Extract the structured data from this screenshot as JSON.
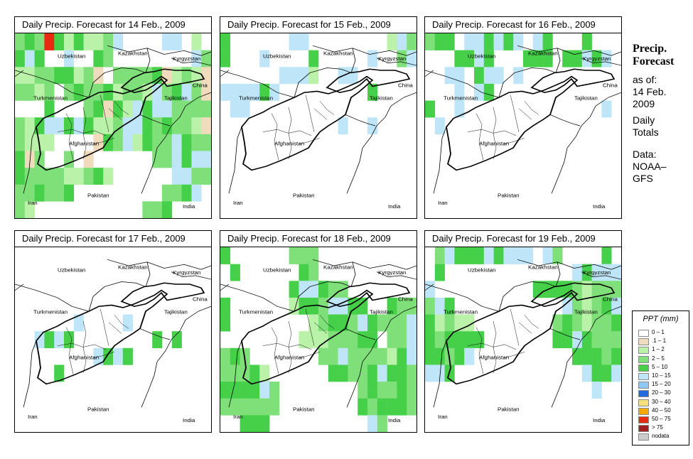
{
  "panels": [
    {
      "title": "Daily Precip. Forecast for  14 Feb., 2009",
      "precip": [
        [
          3,
          4,
          3,
          10,
          4,
          2,
          4,
          2,
          2,
          3,
          5,
          0,
          0,
          0,
          0,
          5,
          5,
          0,
          2,
          0,
          4,
          5,
          4,
          0,
          0,
          5,
          0,
          0,
          4,
          3,
          0,
          0,
          0,
          0,
          0,
          0,
          0,
          0,
          5,
          3,
          2,
          2,
          3,
          3,
          4,
          4,
          2,
          3,
          1,
          0,
          3,
          3,
          3,
          3,
          4,
          1,
          2,
          3,
          2,
          1,
          3,
          3,
          2,
          3,
          0,
          3,
          4,
          3,
          3,
          4,
          2,
          3,
          3,
          2,
          5,
          3,
          4,
          5,
          3,
          1,
          0,
          0,
          0,
          4,
          0,
          0,
          0,
          3,
          4,
          1,
          4,
          2,
          5,
          4,
          5,
          5,
          3,
          3,
          3,
          3,
          3,
          2,
          4,
          5,
          5,
          4,
          5,
          4,
          2,
          2,
          3,
          5,
          5,
          4,
          3,
          4,
          3,
          3,
          2,
          1,
          3,
          2,
          2,
          2,
          0,
          0,
          0,
          0,
          1,
          4,
          3,
          5,
          2,
          4,
          3,
          3,
          5,
          4,
          3,
          3,
          4,
          1,
          3,
          0,
          0,
          3,
          0,
          1,
          0,
          0,
          0,
          0,
          0,
          0,
          3,
          3,
          5,
          4,
          5,
          5,
          4,
          3,
          3,
          3,
          3,
          2,
          2,
          3,
          4,
          2,
          0,
          0,
          0,
          0,
          0,
          0,
          5,
          5,
          3,
          3,
          3,
          3,
          4,
          3,
          3,
          4,
          0,
          0,
          0,
          0,
          0,
          0,
          0,
          0,
          0,
          3,
          3,
          4,
          5,
          0,
          3,
          2,
          0,
          0,
          0,
          0,
          0,
          0,
          0,
          0,
          0,
          0,
          0,
          3,
          3,
          4,
          0,
          0
        ]
      ]
    },
    {
      "title": "Daily Precip. Forecast for  15 Feb., 2009",
      "precip": [
        [
          4,
          0,
          0,
          0,
          0,
          0,
          0,
          5,
          5,
          0,
          0,
          0,
          0,
          0,
          0,
          0,
          0,
          2,
          5,
          3,
          4,
          0,
          0,
          0,
          5,
          0,
          0,
          0,
          0,
          4,
          0,
          0,
          0,
          0,
          0,
          5,
          0,
          0,
          3,
          5,
          0,
          0,
          0,
          0,
          0,
          0,
          5,
          5,
          5,
          2,
          0,
          0,
          5,
          5,
          0,
          0,
          0,
          0,
          0,
          0,
          5,
          5,
          5,
          5,
          4,
          5,
          0,
          0,
          0,
          0,
          0,
          0,
          0,
          0,
          0,
          4,
          0,
          0,
          0,
          0,
          0,
          5,
          5,
          0,
          0,
          0,
          0,
          0,
          0,
          0,
          0,
          0,
          0,
          0,
          0,
          0,
          0,
          0,
          0,
          0,
          0,
          0,
          0,
          0,
          0,
          0,
          0,
          0,
          0,
          0,
          0,
          0,
          5,
          0,
          0,
          5,
          0,
          0,
          0,
          0,
          0,
          0,
          0,
          0,
          0,
          0,
          0,
          0,
          0,
          0,
          0,
          0,
          0,
          0,
          0,
          0,
          0,
          0,
          0,
          0,
          0,
          0,
          0,
          0,
          0,
          0,
          0,
          0,
          0,
          0,
          0,
          0,
          0,
          0,
          0,
          0,
          0,
          0,
          0,
          0,
          0,
          0,
          0,
          0,
          0,
          0,
          0,
          0,
          0,
          0,
          0,
          0,
          0,
          0,
          0,
          0,
          0,
          0,
          0,
          0,
          0,
          0,
          0,
          0,
          0,
          0,
          0,
          0,
          0,
          0,
          0,
          0,
          0,
          0,
          0,
          0,
          0,
          0,
          0,
          0,
          0,
          0,
          0,
          0,
          0,
          0,
          0,
          0,
          0,
          0,
          0,
          0,
          0,
          0,
          0,
          0,
          0,
          0
        ]
      ]
    },
    {
      "title": "Daily Precip. Forecast for  16 Feb., 2009",
      "precip": [
        [
          3,
          4,
          4,
          0,
          5,
          5,
          4,
          5,
          4,
          5,
          0,
          5,
          4,
          0,
          0,
          0,
          4,
          0,
          0,
          0,
          0,
          0,
          0,
          4,
          4,
          5,
          4,
          0,
          0,
          0,
          4,
          4,
          4,
          0,
          4,
          4,
          5,
          4,
          5,
          0,
          0,
          0,
          5,
          5,
          0,
          4,
          5,
          5,
          0,
          5,
          0,
          0,
          0,
          0,
          0,
          0,
          0,
          0,
          0,
          0,
          0,
          0,
          0,
          5,
          0,
          5,
          4,
          0,
          0,
          0,
          0,
          0,
          0,
          0,
          0,
          0,
          0,
          0,
          0,
          0,
          4,
          0,
          0,
          5,
          0,
          0,
          0,
          0,
          0,
          0,
          0,
          0,
          0,
          0,
          0,
          0,
          0,
          0,
          5,
          0,
          0,
          5,
          0,
          0,
          0,
          0,
          0,
          0,
          0,
          0,
          0,
          0,
          0,
          0,
          0,
          0,
          0,
          0,
          0,
          0,
          0,
          0,
          0,
          0,
          0,
          0,
          0,
          0,
          0,
          0,
          0,
          0,
          0,
          0,
          0,
          0,
          0,
          0,
          0,
          0,
          0,
          0,
          0,
          0,
          0,
          0,
          0,
          0,
          0,
          0,
          0,
          0,
          0,
          0,
          0,
          0,
          0,
          0,
          0,
          0,
          0,
          0,
          0,
          0,
          0,
          0,
          0,
          0,
          0,
          0,
          0,
          0,
          0,
          0,
          0,
          0,
          0,
          0,
          0,
          0,
          0,
          0,
          0,
          0,
          0,
          0,
          0,
          0,
          0,
          0,
          0,
          0,
          0,
          0,
          0,
          0,
          0,
          0,
          0,
          0,
          0,
          0,
          0,
          0,
          0,
          0,
          0,
          0,
          0,
          0,
          0,
          0,
          0,
          0,
          0,
          0,
          0,
          0
        ]
      ]
    },
    {
      "title": "Daily Precip. Forecast for  17 Feb., 2009",
      "precip": [
        [
          0,
          0,
          0,
          0,
          0,
          0,
          0,
          0,
          0,
          0,
          0,
          0,
          0,
          0,
          0,
          0,
          0,
          0,
          0,
          0,
          0,
          0,
          0,
          0,
          0,
          0,
          0,
          0,
          0,
          0,
          0,
          0,
          0,
          0,
          0,
          0,
          0,
          0,
          0,
          0,
          0,
          0,
          0,
          0,
          0,
          0,
          0,
          0,
          0,
          0,
          0,
          0,
          0,
          0,
          0,
          0,
          0,
          0,
          0,
          0,
          0,
          0,
          0,
          0,
          0,
          0,
          0,
          0,
          0,
          0,
          0,
          0,
          0,
          0,
          0,
          0,
          0,
          0,
          0,
          0,
          0,
          0,
          0,
          0,
          0,
          0,
          5,
          0,
          0,
          0,
          0,
          5,
          0,
          0,
          0,
          0,
          0,
          0,
          0,
          0,
          0,
          0,
          5,
          4,
          5,
          4,
          0,
          0,
          0,
          0,
          0,
          0,
          0,
          0,
          4,
          0,
          4,
          0,
          0,
          0,
          0,
          0,
          0,
          0,
          0,
          0,
          0,
          0,
          5,
          4,
          5,
          4,
          0,
          0,
          0,
          0,
          0,
          0,
          0,
          0,
          0,
          0,
          0,
          0,
          4,
          0,
          0,
          0,
          0,
          0,
          0,
          0,
          0,
          0,
          0,
          0,
          0,
          0,
          0,
          0,
          0,
          0,
          0,
          0,
          0,
          0,
          0,
          0,
          0,
          0,
          0,
          0,
          0,
          0,
          0,
          0,
          0,
          0,
          0,
          0,
          0,
          0,
          0,
          0,
          0,
          0,
          0,
          0,
          0,
          0,
          0,
          0,
          0,
          0,
          0,
          0,
          0,
          0,
          0,
          0,
          0,
          0,
          0,
          0,
          0,
          0,
          0,
          0,
          0,
          0,
          0,
          0,
          0,
          0,
          0,
          0,
          0,
          0
        ]
      ]
    },
    {
      "title": "Daily Precip. Forecast for  18 Feb., 2009",
      "precip": [
        [
          4,
          0,
          0,
          0,
          0,
          0,
          0,
          3,
          3,
          3,
          0,
          0,
          0,
          0,
          0,
          0,
          0,
          0,
          0,
          0,
          0,
          4,
          0,
          0,
          0,
          0,
          0,
          0,
          4,
          3,
          0,
          0,
          0,
          0,
          0,
          0,
          0,
          0,
          0,
          0,
          0,
          0,
          0,
          0,
          0,
          0,
          0,
          4,
          5,
          5,
          4,
          3,
          3,
          0,
          0,
          0,
          0,
          0,
          0,
          0,
          4,
          0,
          0,
          0,
          0,
          0,
          0,
          2,
          4,
          4,
          3,
          5,
          5,
          4,
          4,
          0,
          0,
          4,
          3,
          3,
          4,
          0,
          0,
          0,
          0,
          0,
          0,
          0,
          0,
          2,
          3,
          4,
          4,
          3,
          5,
          4,
          3,
          3,
          3,
          5,
          0,
          0,
          0,
          0,
          0,
          0,
          0,
          0,
          2,
          2,
          2,
          3,
          3,
          3,
          4,
          4,
          0,
          3,
          3,
          5,
          3,
          4,
          3,
          0,
          0,
          0,
          0,
          0,
          0,
          0,
          3,
          3,
          5,
          3,
          3,
          3,
          3,
          2,
          4,
          5,
          3,
          3,
          3,
          4,
          2,
          0,
          0,
          0,
          0,
          0,
          0,
          4,
          4,
          3,
          3,
          4,
          5,
          4,
          4,
          3,
          4,
          4,
          4,
          4,
          5,
          3,
          0,
          0,
          0,
          0,
          0,
          0,
          0,
          0,
          3,
          4,
          3,
          3,
          4,
          3,
          3,
          3,
          3,
          3,
          3,
          3,
          0,
          0,
          0,
          0,
          0,
          0,
          0,
          0,
          4,
          3,
          4,
          4,
          4,
          3,
          0,
          0,
          4,
          4,
          4,
          0,
          0,
          0,
          0,
          0,
          0,
          0,
          0,
          0,
          0,
          5,
          3,
          0,
          0
        ]
      ]
    },
    {
      "title": "Daily Precip. Forecast for  19 Feb., 2009",
      "precip": [
        [
          0,
          3,
          5,
          4,
          4,
          4,
          5,
          4,
          5,
          5,
          5,
          0,
          5,
          3,
          0,
          0,
          0,
          0,
          4,
          0,
          0,
          4,
          0,
          0,
          0,
          0,
          0,
          0,
          0,
          0,
          0,
          0,
          0,
          0,
          0,
          5,
          4,
          5,
          5,
          5,
          5,
          0,
          0,
          0,
          0,
          0,
          0,
          0,
          0,
          0,
          0,
          4,
          4,
          4,
          4,
          3,
          2,
          3,
          3,
          3,
          3,
          5,
          4,
          0,
          0,
          0,
          0,
          0,
          0,
          0,
          0,
          0,
          0,
          0,
          5,
          3,
          2,
          3,
          4,
          5,
          4,
          2,
          3,
          2,
          2,
          0,
          0,
          0,
          0,
          0,
          0,
          0,
          0,
          3,
          4,
          3,
          2,
          3,
          3,
          4,
          4,
          3,
          4,
          4,
          4,
          4,
          0,
          0,
          0,
          0,
          0,
          0,
          0,
          4,
          4,
          5,
          4,
          3,
          3,
          3,
          4,
          4,
          3,
          4,
          5,
          0,
          0,
          0,
          0,
          0,
          0,
          0,
          0,
          0,
          0,
          4,
          4,
          4,
          3,
          4,
          5,
          5,
          4,
          0,
          0,
          0,
          0,
          0,
          0,
          0,
          0,
          0,
          0,
          0,
          0,
          0,
          5,
          4,
          4,
          5,
          0,
          0,
          0,
          0,
          0,
          0,
          0,
          0,
          0,
          0,
          0,
          0,
          0,
          0,
          0,
          0,
          0,
          5,
          0,
          0,
          0,
          0,
          0,
          0,
          0,
          0,
          0,
          0,
          0,
          0,
          0,
          0,
          0,
          0,
          0,
          0,
          0,
          0,
          0,
          0,
          0,
          0,
          0,
          0,
          0,
          0,
          0,
          0,
          0,
          0,
          0,
          0,
          0,
          0,
          0,
          0,
          0,
          0,
          0
        ]
      ]
    }
  ],
  "map_labels": {
    "uzbekistan": "Uzbekistan",
    "kazakhstan": "Kazakhstan",
    "kyrgyzstan": "Kyrgyzstan",
    "turkmenistan": "Turkmenistan",
    "tajikistan": "Tajikistan",
    "china": "China",
    "afghanistan": "Afghanistan",
    "pakistan": "Pakistan",
    "iran": "Iran",
    "india": "India"
  },
  "side": {
    "heading_line1": "Precip.",
    "heading_line2": "Forecast",
    "asof_1": "as of:",
    "asof_2": "14 Feb.",
    "asof_3": "2009",
    "daily_1": "Daily",
    "daily_2": "Totals",
    "data_1": "Data:",
    "data_2": "NOAA–",
    "data_3": "GFS"
  },
  "legend": {
    "title": "PPT (mm)",
    "items": [
      {
        "label": "0 – 1",
        "color": "#ffffff"
      },
      {
        "label": ".1 – 1",
        "color": "#f0dcbc"
      },
      {
        "label": "1 – 2",
        "color": "#b9f2a8"
      },
      {
        "label": "2 – 5",
        "color": "#7fe07a"
      },
      {
        "label": "5 – 10",
        "color": "#46d04a"
      },
      {
        "label": "10 – 15",
        "color": "#bfe6f8"
      },
      {
        "label": "15 – 20",
        "color": "#8fc8f2"
      },
      {
        "label": "20 – 30",
        "color": "#2468e0"
      },
      {
        "label": "30 – 40",
        "color": "#f6e07a"
      },
      {
        "label": "40 – 50",
        "color": "#f6a800"
      },
      {
        "label": "50 – 75",
        "color": "#e82a10"
      },
      {
        "label": "> 75",
        "color": "#a02020"
      },
      {
        "label": "nodata",
        "color": "#cccccc"
      }
    ]
  }
}
